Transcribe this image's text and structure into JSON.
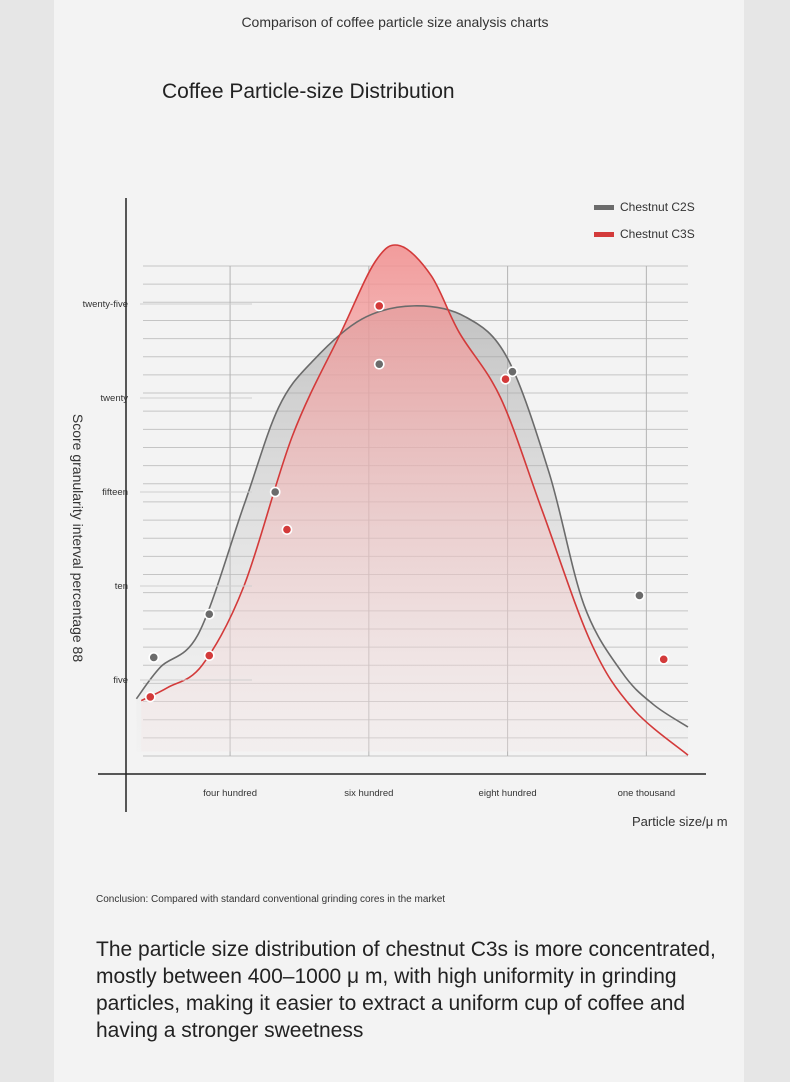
{
  "header": {
    "title": "Comparison of coffee particle size analysis charts"
  },
  "chart_data": {
    "type": "line",
    "title": "Coffee Particle-size Distribution",
    "xlabel": "Particle size/μ m",
    "ylabel": "Score granularity interval percentage 88",
    "x_ticks": [
      {
        "value": 400,
        "label": "four hundred"
      },
      {
        "value": 600,
        "label": "six hundred"
      },
      {
        "value": 800,
        "label": "eight hundred"
      },
      {
        "value": 1000,
        "label": "one thousand"
      }
    ],
    "y_ticks": [
      {
        "value": 5,
        "label": "five"
      },
      {
        "value": 10,
        "label": "ten"
      },
      {
        "value": 15,
        "label": "fifteen"
      },
      {
        "value": 20,
        "label": "twenty"
      },
      {
        "value": 25,
        "label": "twenty-five"
      }
    ],
    "xlim": [
      250,
      1060
    ],
    "ylim": [
      0,
      30
    ],
    "grid": true,
    "legend_position": "top-right",
    "series": [
      {
        "name": "Chestnut C2S",
        "color": "#6b6b6b",
        "curve": [
          [
            265,
            4.0
          ],
          [
            300,
            5.7
          ],
          [
            355,
            7.5
          ],
          [
            420,
            14.3
          ],
          [
            470,
            19.5
          ],
          [
            520,
            22.0
          ],
          [
            590,
            24.2
          ],
          [
            665,
            24.9
          ],
          [
            740,
            24.3
          ],
          [
            800,
            22.1
          ],
          [
            860,
            16.0
          ],
          [
            910,
            9.0
          ],
          [
            965,
            5.4
          ],
          [
            1010,
            3.7
          ],
          [
            1060,
            2.5
          ]
        ],
        "markers": [
          [
            290,
            6.2
          ],
          [
            370,
            8.5
          ],
          [
            465,
            15.0
          ],
          [
            615,
            21.8
          ],
          [
            807,
            21.4
          ],
          [
            990,
            9.5
          ]
        ]
      },
      {
        "name": "Chestnut C3S",
        "color": "#d33a3a",
        "curve": [
          [
            272,
            3.9
          ],
          [
            310,
            4.6
          ],
          [
            360,
            5.8
          ],
          [
            420,
            10.0
          ],
          [
            490,
            18.0
          ],
          [
            560,
            23.5
          ],
          [
            610,
            27.3
          ],
          [
            645,
            28.1
          ],
          [
            690,
            26.5
          ],
          [
            730,
            23.5
          ],
          [
            790,
            20.0
          ],
          [
            850,
            14.0
          ],
          [
            920,
            7.0
          ],
          [
            980,
            3.5
          ],
          [
            1060,
            1.0
          ]
        ],
        "markers": [
          [
            285,
            4.1
          ],
          [
            370,
            6.3
          ],
          [
            482,
            13.0
          ],
          [
            615,
            24.9
          ],
          [
            797,
            21.0
          ],
          [
            1025,
            6.1
          ]
        ]
      }
    ]
  },
  "conclusion": {
    "label": "Conclusion: Compared with standard conventional grinding cores in the market",
    "text": "The particle size distribution of chestnut C3s is more concentrated, mostly between 400–1000 μ m, with high uniformity in grinding particles, making it easier to extract a uniform cup of coffee and having a stronger sweetness"
  }
}
